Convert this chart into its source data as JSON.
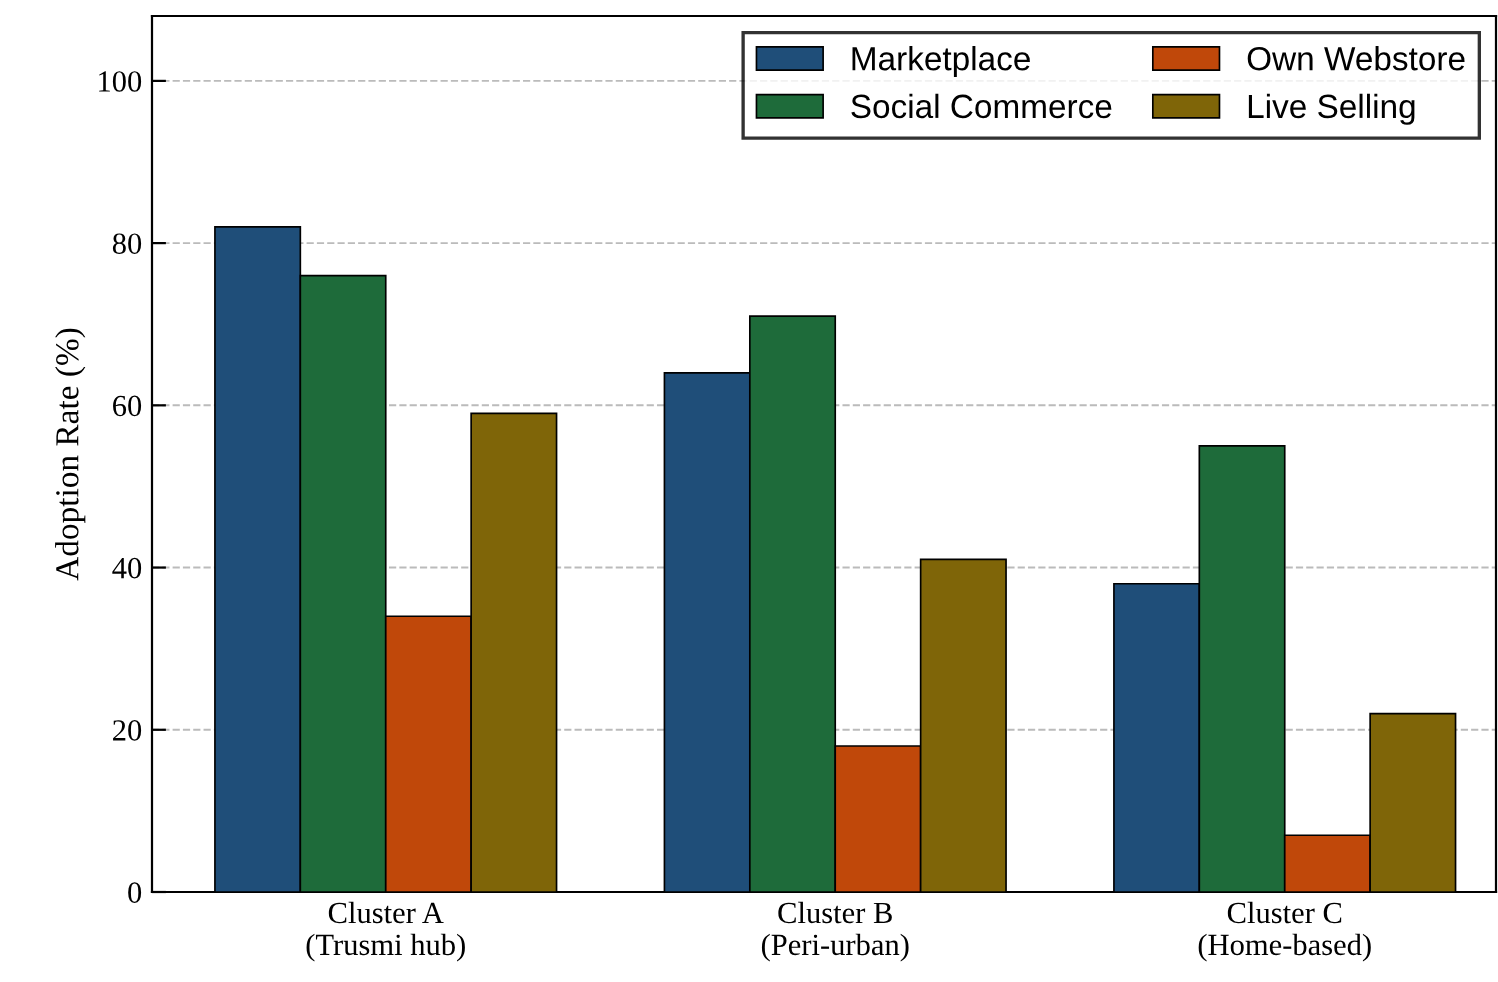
{
  "chart_data": {
    "type": "bar",
    "ylabel": "Adoption Rate (%)",
    "categories": [
      "Cluster A\n(Trusmi hub)",
      "Cluster B\n(Peri-urban)",
      "Cluster C\n(Home-based)"
    ],
    "series": [
      {
        "name": "Marketplace",
        "color": "#1f4e79",
        "values": [
          82,
          64,
          38
        ]
      },
      {
        "name": "Social Commerce",
        "color": "#1e6b3a",
        "values": [
          76,
          71,
          55
        ]
      },
      {
        "name": "Own Webstore",
        "color": "#c0480a",
        "values": [
          34,
          18,
          7
        ]
      },
      {
        "name": "Live Selling",
        "color": "#7f6508",
        "values": [
          59,
          41,
          22
        ]
      }
    ],
    "ylim": [
      0,
      108
    ],
    "yticks": [
      0,
      20,
      40,
      60,
      80,
      100
    ],
    "grid": "y",
    "legend": "top right"
  }
}
